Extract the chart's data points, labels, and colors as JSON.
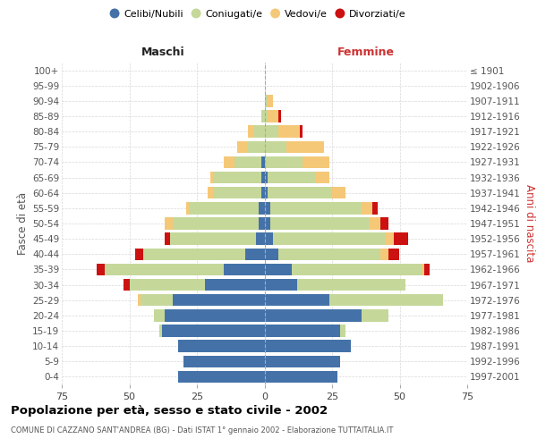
{
  "age_groups": [
    "0-4",
    "5-9",
    "10-14",
    "15-19",
    "20-24",
    "25-29",
    "30-34",
    "35-39",
    "40-44",
    "45-49",
    "50-54",
    "55-59",
    "60-64",
    "65-69",
    "70-74",
    "75-79",
    "80-84",
    "85-89",
    "90-94",
    "95-99",
    "100+"
  ],
  "birth_years": [
    "1997-2001",
    "1992-1996",
    "1987-1991",
    "1982-1986",
    "1977-1981",
    "1972-1976",
    "1967-1971",
    "1962-1966",
    "1957-1961",
    "1952-1956",
    "1947-1951",
    "1942-1946",
    "1937-1941",
    "1932-1936",
    "1927-1931",
    "1922-1926",
    "1917-1921",
    "1912-1916",
    "1907-1911",
    "1902-1906",
    "≤ 1901"
  ],
  "male_celibi": [
    32,
    30,
    32,
    38,
    37,
    34,
    22,
    15,
    7,
    3,
    2,
    2,
    1,
    1,
    1,
    0,
    0,
    0,
    0,
    0,
    0
  ],
  "male_coniugati": [
    0,
    0,
    0,
    1,
    4,
    12,
    28,
    44,
    38,
    32,
    32,
    26,
    18,
    18,
    10,
    6,
    4,
    1,
    0,
    0,
    0
  ],
  "male_vedovi": [
    0,
    0,
    0,
    0,
    0,
    1,
    0,
    0,
    0,
    0,
    3,
    1,
    2,
    1,
    4,
    4,
    2,
    0,
    0,
    0,
    0
  ],
  "male_divorziati": [
    0,
    0,
    0,
    0,
    0,
    0,
    2,
    3,
    3,
    2,
    0,
    0,
    0,
    0,
    0,
    0,
    0,
    0,
    0,
    0,
    0
  ],
  "female_celibi": [
    27,
    28,
    32,
    28,
    36,
    24,
    12,
    10,
    5,
    3,
    2,
    2,
    1,
    1,
    0,
    0,
    0,
    0,
    0,
    0,
    0
  ],
  "female_coniugati": [
    0,
    0,
    0,
    2,
    10,
    42,
    40,
    48,
    38,
    42,
    37,
    34,
    24,
    18,
    14,
    8,
    5,
    1,
    1,
    0,
    0
  ],
  "female_vedovi": [
    0,
    0,
    0,
    0,
    0,
    0,
    0,
    1,
    3,
    3,
    4,
    4,
    5,
    5,
    10,
    14,
    8,
    4,
    2,
    0,
    0
  ],
  "female_divorziati": [
    0,
    0,
    0,
    0,
    0,
    0,
    0,
    2,
    4,
    5,
    3,
    2,
    0,
    0,
    0,
    0,
    1,
    1,
    0,
    0,
    0
  ],
  "color_celibi": "#4472A8",
  "color_coniugati": "#C5D89A",
  "color_vedovi": "#F5C878",
  "color_divorziati": "#CC1111",
  "title": "Popolazione per età, sesso e stato civile - 2002",
  "subtitle": "COMUNE DI CAZZANO SANT'ANDREA (BG) - Dati ISTAT 1° gennaio 2002 - Elaborazione TUTTAITALIA.IT",
  "xlim": 75,
  "ylabel_left": "Fasce di età",
  "ylabel_right": "Anni di nascita",
  "xlabel_left": "Maschi",
  "xlabel_right": "Femmine"
}
